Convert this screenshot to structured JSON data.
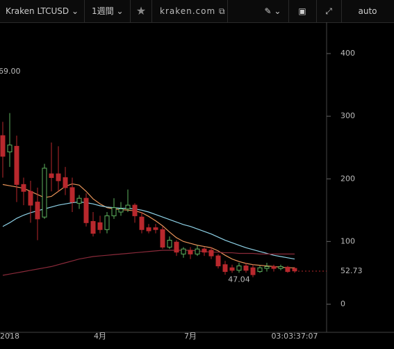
{
  "toolbar": {
    "symbol": "Kraken LTCUSD",
    "interval": "1週間",
    "source": "kraken.com",
    "scale": "auto"
  },
  "chart_data": {
    "type": "candlestick",
    "ylim": [
      -45,
      450
    ],
    "yticks": [
      0,
      100,
      200,
      300,
      400
    ],
    "xticks": [
      {
        "value": 1,
        "label": "2018"
      },
      {
        "value": 14,
        "label": "4月"
      },
      {
        "value": 27,
        "label": "7月"
      },
      {
        "value": 42,
        "label": "03:03:37:07"
      }
    ],
    "up_color": "#5fb35f",
    "down_color": "#b8282d",
    "candles": [
      {
        "o": 269,
        "h": 291,
        "l": 202,
        "c": 236
      },
      {
        "o": 243,
        "h": 305,
        "l": 219,
        "c": 254
      },
      {
        "o": 252,
        "h": 269,
        "l": 163,
        "c": 191
      },
      {
        "o": 191,
        "h": 202,
        "l": 158,
        "c": 180
      },
      {
        "o": 180,
        "h": 197,
        "l": 130,
        "c": 158
      },
      {
        "o": 163,
        "h": 186,
        "l": 102,
        "c": 136
      },
      {
        "o": 139,
        "h": 224,
        "l": 136,
        "c": 217
      },
      {
        "o": 208,
        "h": 258,
        "l": 180,
        "c": 202
      },
      {
        "o": 208,
        "h": 252,
        "l": 180,
        "c": 197
      },
      {
        "o": 202,
        "h": 219,
        "l": 174,
        "c": 186
      },
      {
        "o": 186,
        "h": 202,
        "l": 147,
        "c": 163
      },
      {
        "o": 161,
        "h": 174,
        "l": 152,
        "c": 169
      },
      {
        "o": 169,
        "h": 177,
        "l": 124,
        "c": 130
      },
      {
        "o": 132,
        "h": 147,
        "l": 108,
        "c": 113
      },
      {
        "o": 130,
        "h": 141,
        "l": 113,
        "c": 119
      },
      {
        "o": 119,
        "h": 147,
        "l": 113,
        "c": 141
      },
      {
        "o": 141,
        "h": 169,
        "l": 136,
        "c": 154
      },
      {
        "o": 147,
        "h": 163,
        "l": 141,
        "c": 152
      },
      {
        "o": 152,
        "h": 183,
        "l": 147,
        "c": 158
      },
      {
        "o": 158,
        "h": 161,
        "l": 130,
        "c": 141
      },
      {
        "o": 139,
        "h": 147,
        "l": 113,
        "c": 119
      },
      {
        "o": 122,
        "h": 128,
        "l": 113,
        "c": 117
      },
      {
        "o": 122,
        "h": 128,
        "l": 113,
        "c": 119
      },
      {
        "o": 119,
        "h": 124,
        "l": 88,
        "c": 91
      },
      {
        "o": 91,
        "h": 108,
        "l": 88,
        "c": 102
      },
      {
        "o": 99,
        "h": 102,
        "l": 77,
        "c": 83
      },
      {
        "o": 80,
        "h": 91,
        "l": 74,
        "c": 88
      },
      {
        "o": 86,
        "h": 91,
        "l": 72,
        "c": 80
      },
      {
        "o": 80,
        "h": 94,
        "l": 77,
        "c": 88
      },
      {
        "o": 88,
        "h": 91,
        "l": 77,
        "c": 83
      },
      {
        "o": 86,
        "h": 91,
        "l": 72,
        "c": 77
      },
      {
        "o": 77,
        "h": 80,
        "l": 57,
        "c": 61
      },
      {
        "o": 63,
        "h": 69,
        "l": 47,
        "c": 52
      },
      {
        "o": 58,
        "h": 63,
        "l": 50,
        "c": 54
      },
      {
        "o": 54,
        "h": 66,
        "l": 50,
        "c": 61
      },
      {
        "o": 61,
        "h": 66,
        "l": 50,
        "c": 54
      },
      {
        "o": 58,
        "h": 63,
        "l": 43,
        "c": 47
      },
      {
        "o": 52,
        "h": 61,
        "l": 50,
        "c": 58
      },
      {
        "o": 57,
        "h": 66,
        "l": 52,
        "c": 60
      },
      {
        "o": 60,
        "h": 63,
        "l": 52,
        "c": 57
      },
      {
        "o": 57,
        "h": 63,
        "l": 54,
        "c": 60
      },
      {
        "o": 59,
        "h": 61,
        "l": 50,
        "c": 52
      },
      {
        "o": 57,
        "h": 59,
        "l": 50,
        "c": 53
      }
    ],
    "series": [
      {
        "color": "#e8945a",
        "values": [
          191,
          189,
          187,
          185,
          180,
          175,
          170,
          172,
          180,
          188,
          192,
          190,
          180,
          168,
          160,
          154,
          152,
          151,
          150,
          149,
          146,
          140,
          133,
          125,
          115,
          106,
          100,
          97,
          94,
          92,
          90,
          85,
          78,
          72,
          68,
          65,
          63,
          62,
          61,
          60,
          59,
          58,
          58
        ]
      },
      {
        "color": "#8fd3e8",
        "values": [
          124,
          130,
          137,
          142,
          146,
          149,
          152,
          155,
          158,
          160,
          162,
          163,
          162,
          160,
          157,
          155,
          154,
          153,
          153,
          152,
          150,
          147,
          143,
          139,
          135,
          131,
          127,
          124,
          120,
          116,
          112,
          107,
          102,
          98,
          94,
          90,
          87,
          84,
          81,
          78,
          76,
          74,
          72
        ]
      },
      {
        "color": "#8a2a3a",
        "values": [
          46,
          48,
          50,
          52,
          54,
          56,
          58,
          60,
          63,
          66,
          69,
          72,
          74,
          76,
          77,
          78,
          79,
          80,
          81,
          82,
          83,
          84,
          85,
          86,
          86,
          86,
          86,
          86,
          85,
          84,
          83,
          83,
          82,
          82,
          81,
          81,
          81,
          80,
          80,
          80,
          80,
          80,
          80
        ]
      }
    ],
    "last_price": 52.73,
    "annotations": [
      {
        "text": "69.00",
        "at": 0
      },
      {
        "text": "47.04",
        "at": 34
      }
    ]
  }
}
